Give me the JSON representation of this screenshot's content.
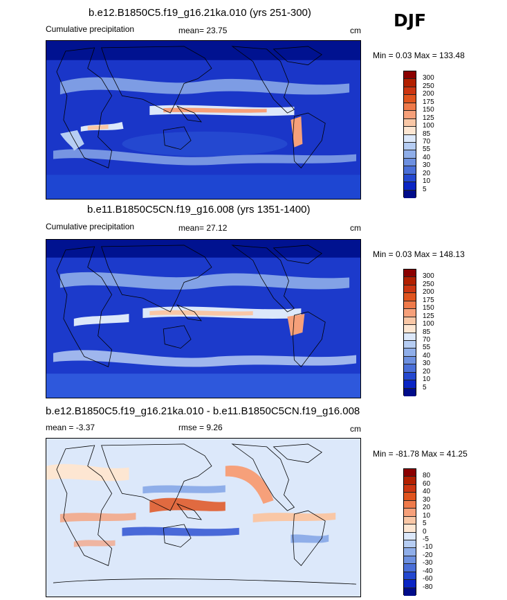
{
  "season_label": "DJF",
  "panels": [
    {
      "title": "b.e12.B1850C5.f19_g16.21ka.010 (yrs 251-300)",
      "left_label": "Cumulative precipitation",
      "mean_label": "mean=  23.75",
      "rmse_label": "",
      "units": "cm",
      "minmax_label": "Min =   0.03 Max = 133.48",
      "colorbar_levels": [
        "300",
        "250",
        "200",
        "175",
        "150",
        "125",
        "100",
        "85",
        "70",
        "55",
        "40",
        "30",
        "20",
        "10",
        "5"
      ],
      "colorbar_colors": [
        "#8b0000",
        "#b22000",
        "#cc3511",
        "#e0541e",
        "#ef7a4a",
        "#f6a07a",
        "#f9c7a6",
        "#fde6d2",
        "#dce8fa",
        "#b6cdf3",
        "#8faee9",
        "#6d90e0",
        "#4a6fd8",
        "#2448d0",
        "#0a25c4",
        "#000c8a"
      ]
    },
    {
      "title": "b.e11.B1850C5CN.f19_g16.008 (yrs 1351-1400)",
      "left_label": "Cumulative precipitation",
      "mean_label": "mean=  27.12",
      "rmse_label": "",
      "units": "cm",
      "minmax_label": "Min =   0.03 Max = 148.13",
      "colorbar_levels": [
        "300",
        "250",
        "200",
        "175",
        "150",
        "125",
        "100",
        "85",
        "70",
        "55",
        "40",
        "30",
        "20",
        "10",
        "5"
      ],
      "colorbar_colors": [
        "#8b0000",
        "#b22000",
        "#cc3511",
        "#e0541e",
        "#ef7a4a",
        "#f6a07a",
        "#f9c7a6",
        "#fde6d2",
        "#dce8fa",
        "#b6cdf3",
        "#8faee9",
        "#6d90e0",
        "#4a6fd8",
        "#2448d0",
        "#0a25c4",
        "#000c8a"
      ]
    },
    {
      "title": "b.e12.B1850C5.f19_g16.21ka.010 - b.e11.B1850C5CN.f19_g16.008",
      "left_label": "mean =   -3.37",
      "mean_label": "rmse =    9.26",
      "rmse_label": "",
      "units": "cm",
      "minmax_label": "Min = -81.78 Max =  41.25",
      "colorbar_levels": [
        "80",
        "60",
        "40",
        "30",
        "20",
        "10",
        "5",
        "0",
        "-5",
        "-10",
        "-20",
        "-30",
        "-40",
        "-60",
        "-80"
      ],
      "colorbar_colors": [
        "#8b0000",
        "#b22000",
        "#cc3511",
        "#e0541e",
        "#ef7a4a",
        "#f6a07a",
        "#f9c7a6",
        "#fde6d2",
        "#dce8fa",
        "#b6cdf3",
        "#8faee9",
        "#6d90e0",
        "#4a6fd8",
        "#2448d0",
        "#0a25c4",
        "#000c8a"
      ]
    }
  ]
}
